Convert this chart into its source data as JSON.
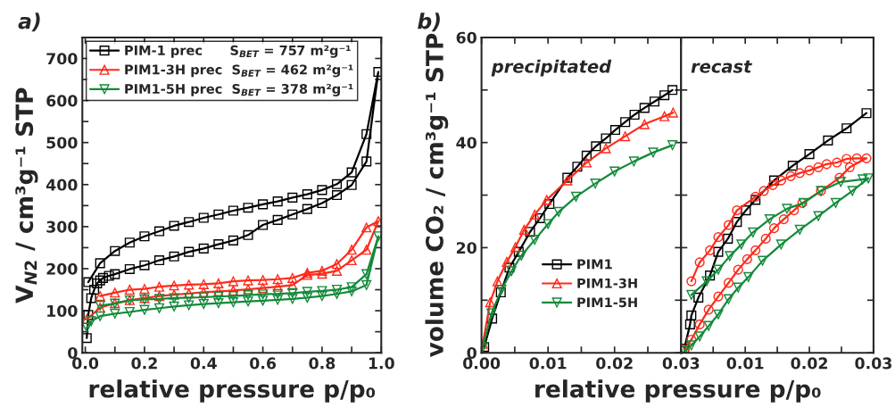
{
  "chart_data": [
    {
      "type": "line",
      "title": "a)",
      "xlabel": "relative pressure p/p₀",
      "ylabel": "V$_{N2}$ / cm³g⁻¹ STP",
      "xlim": [
        -0.01,
        1.0
      ],
      "ylim": [
        0,
        750
      ],
      "xticks": [
        {
          "value": 0,
          "label": "0.0"
        },
        {
          "value": 0.1,
          "label": null
        },
        0.2,
        {
          "value": 0.3,
          "label": null
        },
        0.4,
        {
          "value": 0.5,
          "label": null
        },
        0.6,
        {
          "value": 0.7,
          "label": null
        },
        0.8,
        {
          "value": 0.9,
          "label": null
        },
        {
          "value": 1.0,
          "label": "1.0"
        }
      ],
      "yticks": [
        0,
        {
          "value": 50,
          "label": null
        },
        100,
        {
          "value": 150,
          "label": null
        },
        200,
        {
          "value": 250,
          "label": null
        },
        300,
        {
          "value": 350,
          "label": null
        },
        400,
        {
          "value": 450,
          "label": null
        },
        500,
        {
          "value": 550,
          "label": null
        },
        600,
        {
          "value": 650,
          "label": null
        },
        700
      ],
      "legend": "top left",
      "series": [
        {
          "name": "PIM-1 prec      S$_{BET}$ = 757 m²g⁻¹",
          "color": "#000000",
          "marker": "square",
          "x": [
            0.005,
            0.01,
            0.02,
            0.03,
            0.04,
            0.05,
            0.06,
            0.08,
            0.1,
            0.15,
            0.2,
            0.25,
            0.3,
            0.35,
            0.4,
            0.45,
            0.5,
            0.55,
            0.6,
            0.65,
            0.7,
            0.75,
            0.8,
            0.85,
            0.9,
            0.95,
            0.99,
            0.95,
            0.9,
            0.85,
            0.8,
            0.75,
            0.7,
            0.65,
            0.6,
            0.55,
            0.5,
            0.45,
            0.4,
            0.35,
            0.3,
            0.25,
            0.2,
            0.15,
            0.1,
            0.05,
            0.01
          ],
          "values": [
            35,
            90,
            130,
            150,
            165,
            172,
            178,
            183,
            187,
            199,
            208,
            220,
            229,
            240,
            248,
            258,
            267,
            280,
            304,
            316,
            329,
            342,
            356,
            375,
            399,
            455,
            668,
            520,
            429,
            401,
            387,
            377,
            369,
            360,
            353,
            345,
            338,
            329,
            321,
            311,
            302,
            289,
            277,
            262,
            242,
            213,
            168
          ]
        },
        {
          "name": "PIM1-3H prec  S$_{BET}$ = 462 m²g⁻¹",
          "color": "#ff2a1a",
          "marker": "triangle",
          "x": [
            0.005,
            0.05,
            0.1,
            0.15,
            0.2,
            0.25,
            0.3,
            0.35,
            0.4,
            0.45,
            0.5,
            0.55,
            0.6,
            0.65,
            0.7,
            0.75,
            0.8,
            0.85,
            0.9,
            0.95,
            0.99,
            0.95,
            0.9,
            0.85,
            0.8,
            0.75,
            0.7,
            0.65,
            0.6,
            0.55,
            0.5,
            0.45,
            0.4,
            0.35,
            0.3,
            0.25,
            0.2,
            0.15,
            0.1,
            0.05
          ],
          "values": [
            80,
            107,
            118,
            125,
            130,
            135,
            138,
            141,
            144,
            146,
            148,
            151,
            154,
            157,
            161,
            185,
            188,
            195,
            220,
            245,
            313,
            298,
            245,
            211,
            195,
            190,
            178,
            175,
            173,
            172,
            170,
            165,
            163,
            162,
            160,
            157,
            152,
            150,
            143,
            135
          ]
        },
        {
          "name": "PIM1-5H prec  S$_{BET}$ = 378 m²g⁻¹",
          "color": "#138a3a",
          "marker": "triangle-down",
          "x": [
            0.005,
            0.02,
            0.05,
            0.1,
            0.15,
            0.2,
            0.25,
            0.3,
            0.35,
            0.4,
            0.45,
            0.5,
            0.55,
            0.6,
            0.65,
            0.7,
            0.75,
            0.8,
            0.85,
            0.9,
            0.95,
            0.99,
            0.95,
            0.9,
            0.85,
            0.8,
            0.75,
            0.7,
            0.65,
            0.6,
            0.55,
            0.5,
            0.45,
            0.4,
            0.35,
            0.3,
            0.25,
            0.2,
            0.15,
            0.1,
            0.05
          ],
          "values": [
            60,
            75,
            87,
            93,
            97,
            102,
            106,
            110,
            113,
            116,
            118,
            120,
            122,
            124,
            126,
            128,
            131,
            135,
            140,
            146,
            161,
            277,
            187,
            156,
            150,
            147,
            145,
            142,
            140,
            139,
            137,
            135,
            134,
            132,
            131,
            130,
            128,
            127,
            125,
            117,
            112
          ]
        }
      ]
    },
    {
      "type": "line",
      "title": "b)",
      "subtitle": "precipitated",
      "xlabel": "relative pressure p/p₀",
      "ylabel": "volume CO₂ / cm³g⁻¹ STP",
      "xlim": [
        0,
        0.03
      ],
      "ylim": [
        0,
        60
      ],
      "xticks": [
        {
          "value": 0,
          "label": "0.00"
        },
        {
          "value": 0.005,
          "label": null
        },
        0.01,
        {
          "value": 0.015,
          "label": null
        },
        0.02,
        {
          "value": 0.025,
          "label": null
        },
        0.03
      ],
      "yticks": [
        0,
        {
          "value": 10,
          "label": null
        },
        20,
        {
          "value": 30,
          "label": null
        },
        40,
        {
          "value": 50,
          "label": null
        },
        60
      ],
      "legend": "lower right",
      "series": [
        {
          "name": "PIM1",
          "color": "#000000",
          "marker": "square",
          "x": [
            0.0004,
            0.0016,
            0.0029,
            0.0042,
            0.0056,
            0.0073,
            0.0088,
            0.0102,
            0.0129,
            0.0144,
            0.0158,
            0.0172,
            0.0187,
            0.0201,
            0.0216,
            0.023,
            0.0245,
            0.026,
            0.0275,
            0.0287
          ],
          "values": [
            1.1,
            6.5,
            11.5,
            16.2,
            19.2,
            23,
            25.6,
            28.3,
            33.3,
            35.4,
            37.5,
            39.3,
            40.8,
            42.4,
            43.9,
            45.3,
            46.6,
            47.8,
            49.0,
            50.0
          ]
        },
        {
          "name": "PIM1-3H",
          "color": "#ff2a1a",
          "marker": "triangle",
          "x": [
            0.0002,
            0.0013,
            0.0024,
            0.0038,
            0.0051,
            0.0064,
            0.008,
            0.0098,
            0.0129,
            0.0158,
            0.0187,
            0.0216,
            0.0245,
            0.0275,
            0.0288
          ],
          "values": [
            1.7,
            9.6,
            13.6,
            17.3,
            20.1,
            23.4,
            26.3,
            29.1,
            32.8,
            36.2,
            38.9,
            41.2,
            43.5,
            45.0,
            45.7
          ]
        },
        {
          "name": "PIM1-5H",
          "color": "#138a3a",
          "marker": "triangle-down",
          "x": [
            0.0002,
            0.0015,
            0.003,
            0.0045,
            0.006,
            0.008,
            0.01,
            0.0116,
            0.0142,
            0.0171,
            0.02,
            0.0229,
            0.0258,
            0.0287
          ],
          "values": [
            1.1,
            7.5,
            12,
            15.5,
            18.5,
            21.5,
            24.5,
            26.8,
            29.7,
            32.2,
            34.5,
            36.4,
            38.1,
            39.5
          ]
        }
      ]
    },
    {
      "type": "line",
      "subtitle": "recast",
      "xlim": [
        0,
        0.03
      ],
      "ylim": [
        0,
        60
      ],
      "tick_labels": "x",
      "xticks": [
        {
          "value": 0,
          "label": null
        },
        {
          "value": 0.005,
          "label": null
        },
        0.01,
        {
          "value": 0.015,
          "label": null
        },
        0.02,
        {
          "value": 0.025,
          "label": null
        },
        0.03
      ],
      "yticks": [
        0,
        10,
        20,
        30,
        40,
        50,
        60
      ],
      "series": [
        {
          "color": "#000000",
          "marker": "square",
          "x": [
            0.0005,
            0.0014,
            0.0016,
            0.0027,
            0.0045,
            0.0058,
            0.0073,
            0.0087,
            0.0101,
            0.0116,
            0.0145,
            0.0174,
            0.02,
            0.0229,
            0.0258,
            0.0289
          ],
          "values": [
            0.8,
            5.4,
            7.1,
            10.5,
            14.7,
            19.2,
            21.7,
            24.9,
            27.1,
            29.1,
            32.8,
            35.6,
            37.8,
            40.4,
            42.7,
            45.6
          ]
        },
        {
          "color": "#ff2a1a",
          "marker": "circle",
          "x": [
            0.0005,
            0.0016,
            0.0029,
            0.0043,
            0.0058,
            0.0074,
            0.0089,
            0.0103,
            0.0116,
            0.0132,
            0.0145,
            0.016,
            0.0176,
            0.0189,
            0.0218,
            0.0247,
            0.0263,
            0.0289,
            0.0274,
            0.0258,
            0.0243,
            0.0227,
            0.0214,
            0.02,
            0.0185,
            0.0171,
            0.0156,
            0.0143,
            0.0129,
            0.0116,
            0.0087,
            0.0074,
            0.0058,
            0.0045,
            0.0029,
            0.0016
          ],
          "values": [
            0.6,
            2.5,
            5.4,
            8.2,
            10.7,
            13.3,
            15.8,
            17.8,
            19.5,
            21.7,
            23.7,
            25.4,
            27.1,
            28.5,
            30.8,
            33.3,
            35.3,
            37.0,
            37.0,
            36.9,
            36.2,
            35.9,
            35.3,
            34.7,
            34.2,
            33.6,
            32.8,
            31.9,
            30.8,
            29.7,
            27.1,
            24.3,
            22.0,
            19.5,
            17.2,
            13.6
          ]
        },
        {
          "color": "#138a3a",
          "marker": "triangle-down",
          "x": [
            0.0005,
            0.0016,
            0.0029,
            0.0043,
            0.0058,
            0.0074,
            0.0089,
            0.0105,
            0.0127,
            0.0156,
            0.0185,
            0.0214,
            0.0241,
            0.0267,
            0.0292,
            0.0283,
            0.0249,
            0.0218,
            0.0191,
            0.0165,
            0.0138,
            0.0112,
            0.0094,
            0.0076,
            0.0058,
            0.004,
            0.0016
          ],
          "values": [
            0.3,
            1.4,
            3.1,
            5.1,
            7.3,
            10.2,
            12.4,
            14.4,
            17.5,
            20.6,
            23.4,
            26.0,
            28.5,
            30.8,
            33.2,
            33.0,
            32.5,
            30.8,
            28.5,
            27.4,
            25.4,
            22.9,
            20.6,
            18.4,
            15.8,
            13.6,
            11.0
          ]
        }
      ]
    }
  ]
}
